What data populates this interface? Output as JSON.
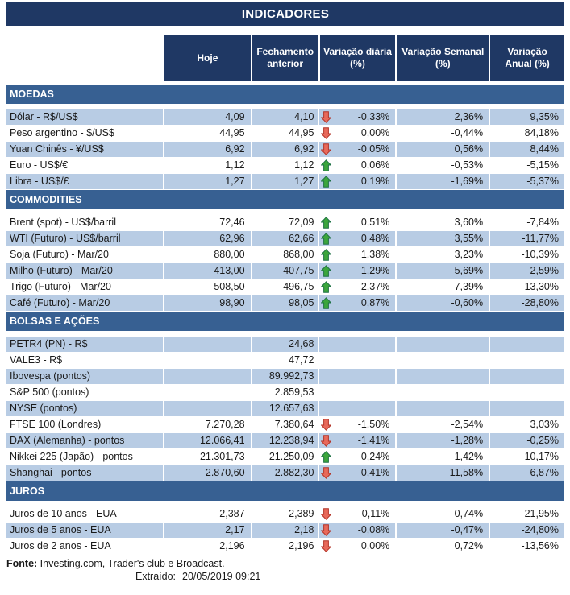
{
  "title": "INDICADORES",
  "columns": [
    "Hoje",
    "Fechamento anterior",
    "Variação diária (%)",
    "Variação Semanal (%)",
    "Variação Anual (%)"
  ],
  "colors": {
    "navy": "#1F3864",
    "section_blue": "#376092",
    "row_shade": "#B8CCE4",
    "up_fill": "#3CA63C",
    "up_border": "#1E7145",
    "down_fill": "#E8695A",
    "down_border": "#B23327"
  },
  "sections": [
    {
      "name": "MOEDAS",
      "rows": [
        {
          "label": "Dólar - R$/US$",
          "hoje": "4,09",
          "fechamento": "4,10",
          "arrow": "down",
          "var_diaria": "-0,33%",
          "var_semanal": "2,36%",
          "var_anual": "9,35%",
          "shaded": true
        },
        {
          "label": "Peso argentino - $/US$",
          "hoje": "44,95",
          "fechamento": "44,95",
          "arrow": "down",
          "var_diaria": "0,00%",
          "var_semanal": "-0,44%",
          "var_anual": "84,18%",
          "shaded": false
        },
        {
          "label": "Yuan Chinês - ¥/US$",
          "hoje": "6,92",
          "fechamento": "6,92",
          "arrow": "down",
          "var_diaria": "-0,05%",
          "var_semanal": "0,56%",
          "var_anual": "8,44%",
          "shaded": true
        },
        {
          "label": "Euro - US$/€",
          "hoje": "1,12",
          "fechamento": "1,12",
          "arrow": "up",
          "var_diaria": "0,06%",
          "var_semanal": "-0,53%",
          "var_anual": "-5,15%",
          "shaded": false
        },
        {
          "label": "Libra - US$/£",
          "hoje": "1,27",
          "fechamento": "1,27",
          "arrow": "up",
          "var_diaria": "0,19%",
          "var_semanal": "-1,69%",
          "var_anual": "-5,37%",
          "shaded": true
        }
      ]
    },
    {
      "name": "COMMODITIES",
      "rows": [
        {
          "label": "Brent (spot) - US$/barril",
          "hoje": "72,46",
          "fechamento": "72,09",
          "arrow": "up",
          "var_diaria": "0,51%",
          "var_semanal": "3,60%",
          "var_anual": "-7,84%",
          "shaded": false
        },
        {
          "label": "WTI (Futuro) - US$/barril",
          "hoje": "62,96",
          "fechamento": "62,66",
          "arrow": "up",
          "var_diaria": "0,48%",
          "var_semanal": "3,55%",
          "var_anual": "-11,77%",
          "shaded": true
        },
        {
          "label": "Soja (Futuro) - Mar/20",
          "hoje": "880,00",
          "fechamento": "868,00",
          "arrow": "up",
          "var_diaria": "1,38%",
          "var_semanal": "3,23%",
          "var_anual": "-10,39%",
          "shaded": false
        },
        {
          "label": "Milho (Futuro) - Mar/20",
          "hoje": "413,00",
          "fechamento": "407,75",
          "arrow": "up",
          "var_diaria": "1,29%",
          "var_semanal": "5,69%",
          "var_anual": "-2,59%",
          "shaded": true
        },
        {
          "label": "Trigo (Futuro) - Mar/20",
          "hoje": "508,50",
          "fechamento": "496,75",
          "arrow": "up",
          "var_diaria": "2,37%",
          "var_semanal": "7,39%",
          "var_anual": "-13,30%",
          "shaded": false
        },
        {
          "label": "Café (Futuro) - Mar/20",
          "hoje": "98,90",
          "fechamento": "98,05",
          "arrow": "up",
          "var_diaria": "0,87%",
          "var_semanal": "-0,60%",
          "var_anual": "-28,80%",
          "shaded": true
        }
      ]
    },
    {
      "name": "BOLSAS E AÇÕES",
      "rows": [
        {
          "label": "PETR4 (PN) - R$",
          "hoje": "",
          "fechamento": "24,68",
          "arrow": null,
          "var_diaria": "",
          "var_semanal": "",
          "var_anual": "",
          "shaded": true
        },
        {
          "label": "VALE3 - R$",
          "hoje": "",
          "fechamento": "47,72",
          "arrow": null,
          "var_diaria": "",
          "var_semanal": "",
          "var_anual": "",
          "shaded": false
        },
        {
          "label": "Ibovespa (pontos)",
          "hoje": "",
          "fechamento": "89.992,73",
          "arrow": null,
          "var_diaria": "",
          "var_semanal": "",
          "var_anual": "",
          "shaded": true
        },
        {
          "label": "S&P 500 (pontos)",
          "hoje": "",
          "fechamento": "2.859,53",
          "arrow": null,
          "var_diaria": "",
          "var_semanal": "",
          "var_anual": "",
          "shaded": false
        },
        {
          "label": "NYSE (pontos)",
          "hoje": "",
          "fechamento": "12.657,63",
          "arrow": null,
          "var_diaria": "",
          "var_semanal": "",
          "var_anual": "",
          "shaded": true
        },
        {
          "label": "FTSE 100 (Londres)",
          "hoje": "7.270,28",
          "fechamento": "7.380,64",
          "arrow": "down",
          "var_diaria": "-1,50%",
          "var_semanal": "-2,54%",
          "var_anual": "3,03%",
          "shaded": false
        },
        {
          "label": "DAX (Alemanha) - pontos",
          "hoje": "12.066,41",
          "fechamento": "12.238,94",
          "arrow": "down",
          "var_diaria": "-1,41%",
          "var_semanal": "-1,28%",
          "var_anual": "-0,25%",
          "shaded": true
        },
        {
          "label": "Nikkei 225 (Japão) - pontos",
          "hoje": "21.301,73",
          "fechamento": "21.250,09",
          "arrow": "up",
          "var_diaria": "0,24%",
          "var_semanal": "-1,42%",
          "var_anual": "-10,17%",
          "shaded": false
        },
        {
          "label": "Shanghai - pontos",
          "hoje": "2.870,60",
          "fechamento": "2.882,30",
          "arrow": "down",
          "var_diaria": "-0,41%",
          "var_semanal": "-11,58%",
          "var_anual": "-6,87%",
          "shaded": true
        }
      ]
    },
    {
      "name": "JUROS",
      "rows": [
        {
          "label": "Juros de 10 anos - EUA",
          "hoje": "2,387",
          "fechamento": "2,389",
          "arrow": "down",
          "var_diaria": "-0,11%",
          "var_semanal": "-0,74%",
          "var_anual": "-21,95%",
          "shaded": false
        },
        {
          "label": "Juros de 5 anos - EUA",
          "hoje": "2,17",
          "fechamento": "2,18",
          "arrow": "down",
          "var_diaria": "-0,08%",
          "var_semanal": "-0,47%",
          "var_anual": "-24,80%",
          "shaded": true
        },
        {
          "label": "Juros de 2 anos - EUA",
          "hoje": "2,196",
          "fechamento": "2,196",
          "arrow": "down",
          "var_diaria": "0,00%",
          "var_semanal": "0,72%",
          "var_anual": "-13,56%",
          "shaded": false
        }
      ]
    }
  ],
  "footer": {
    "fonte_label": "Fonte:",
    "fonte_text": " Investing.com, Trader's club e Broadcast.",
    "extraido_label": "Extraído:",
    "extraido_value": "20/05/2019 09:21"
  }
}
